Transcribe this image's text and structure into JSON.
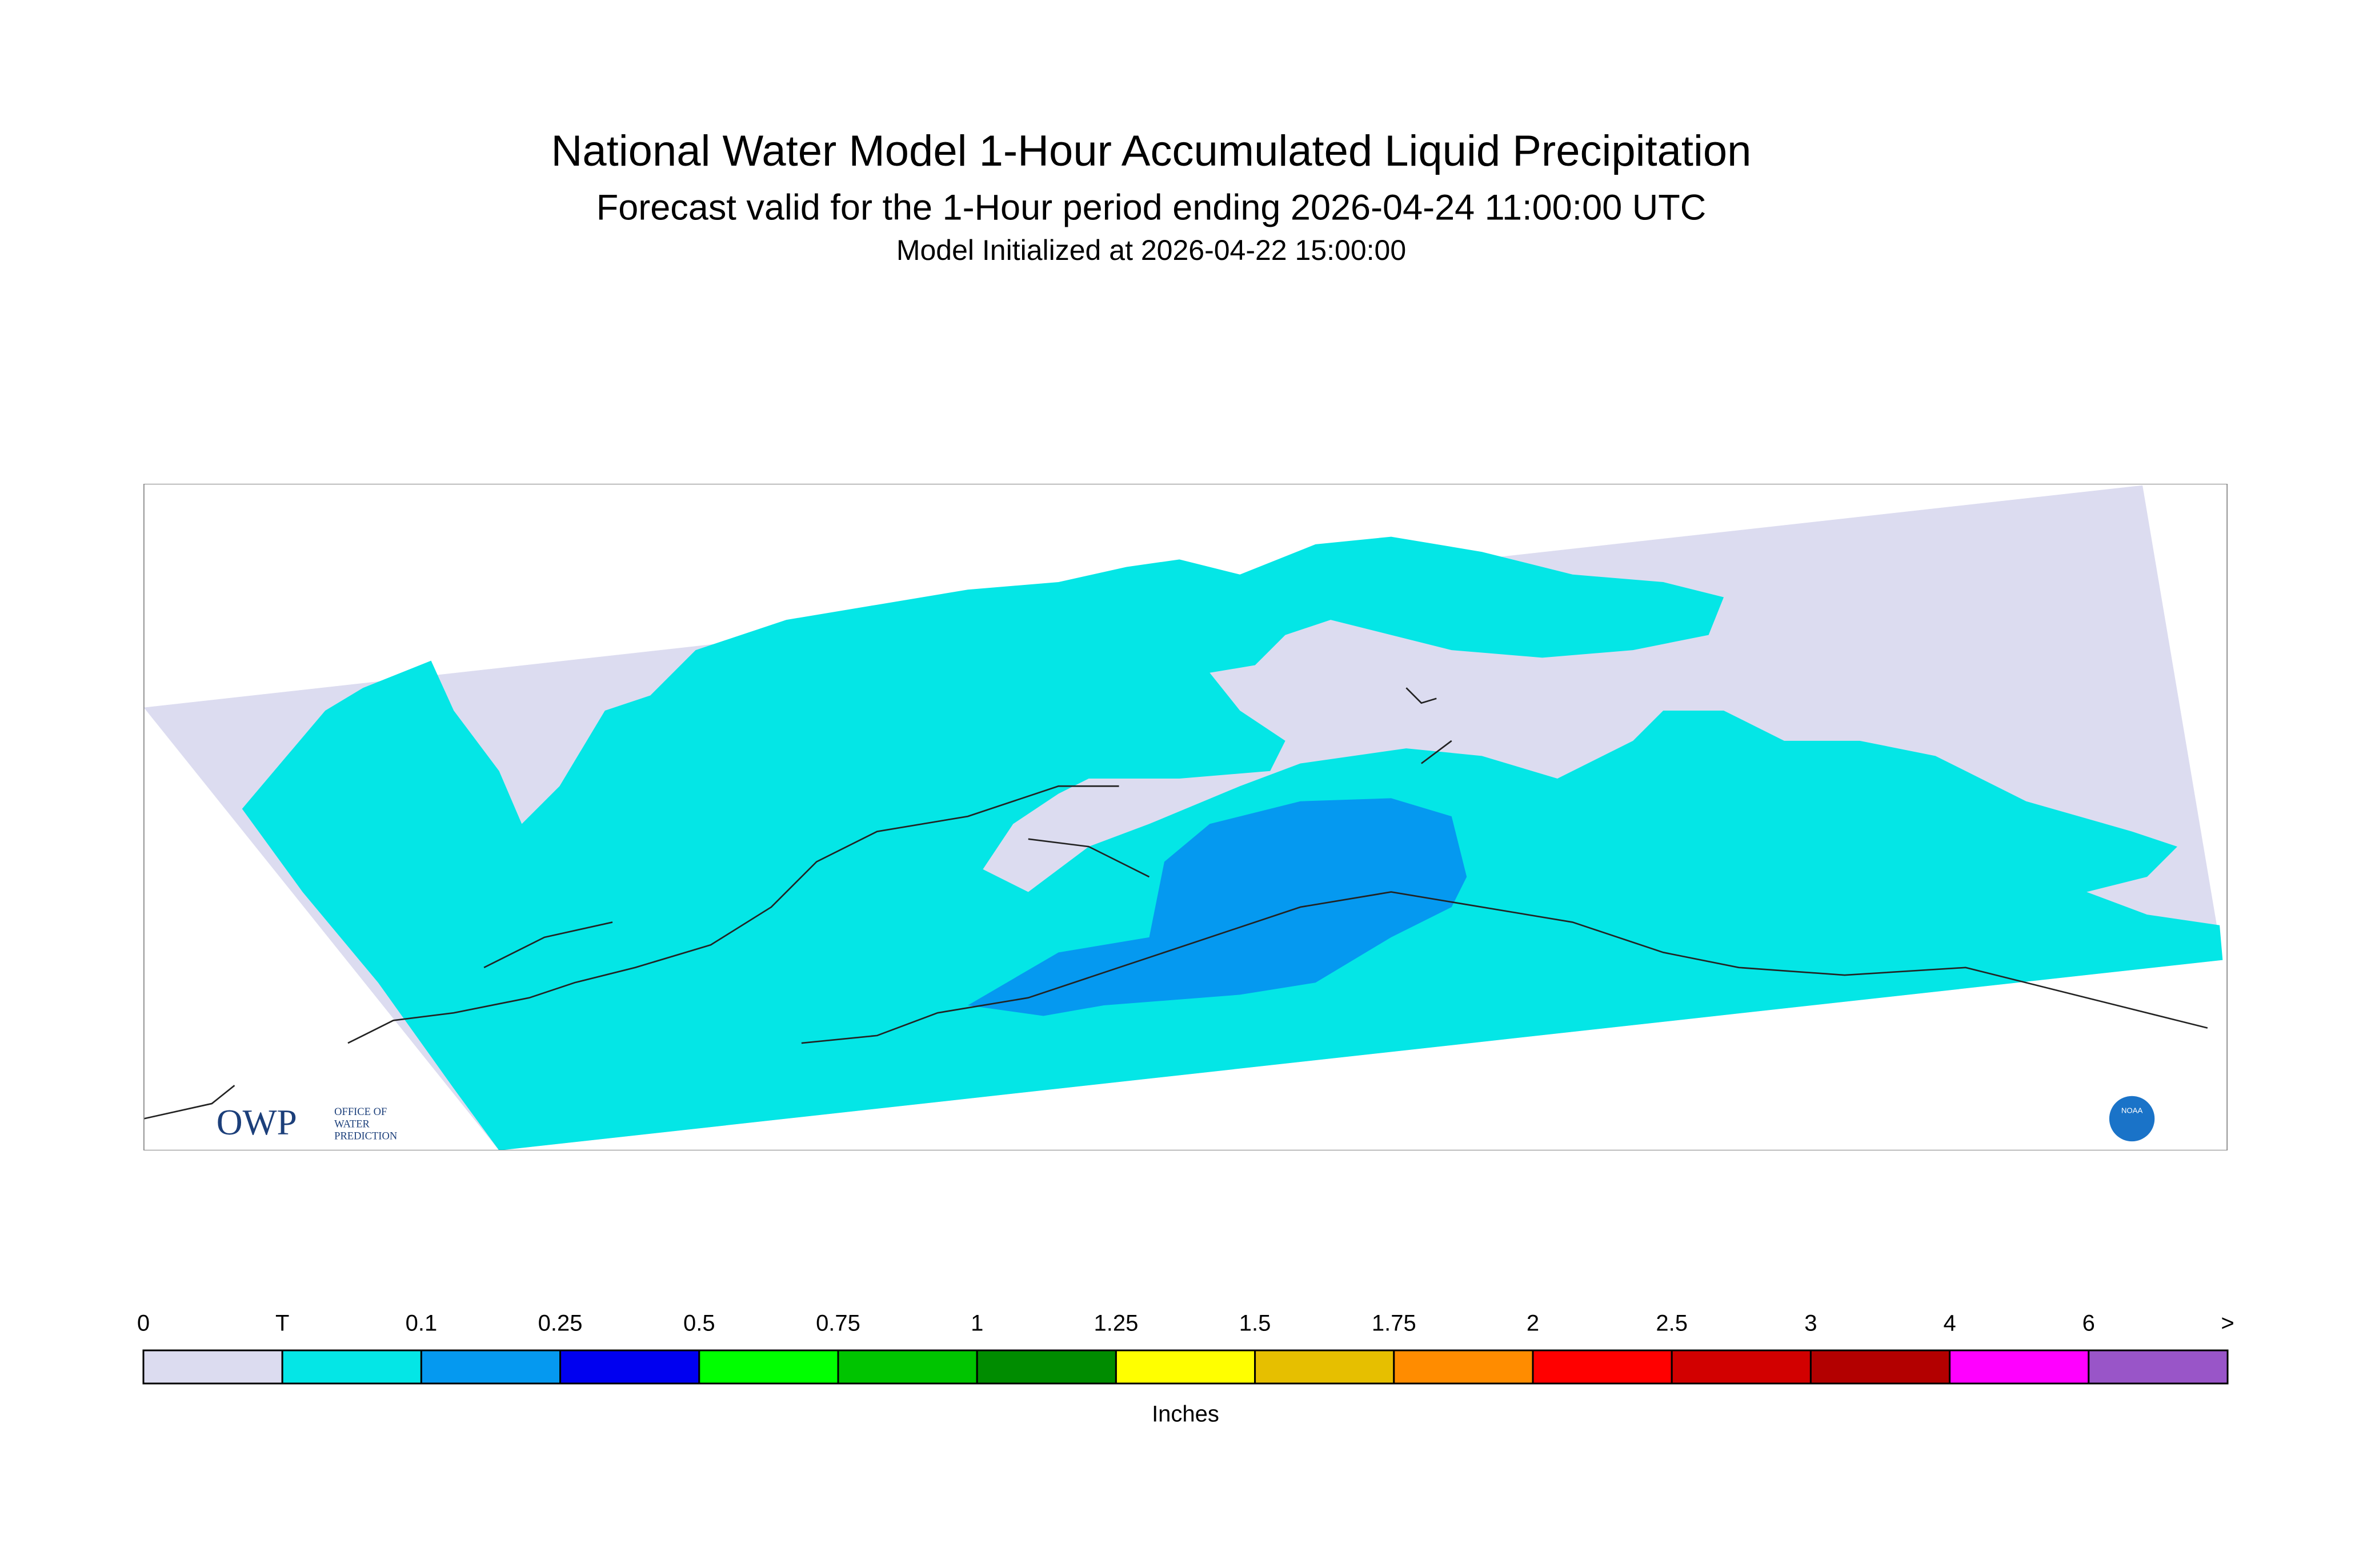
{
  "header": {
    "title": "National Water Model 1-Hour Accumulated Liquid Precipitation",
    "subtitle": "Forecast valid for the 1-Hour period ending 2026-04-24 11:00:00 UTC",
    "initialized": "Model Initialized at 2026-04-22 15:00:00"
  },
  "legend": {
    "labels": [
      "0",
      "T",
      "0.1",
      "0.25",
      "0.5",
      "0.75",
      "1",
      "1.25",
      "1.5",
      "1.75",
      "2",
      "2.5",
      "3",
      "4",
      "6",
      ">"
    ],
    "colors": [
      "#dcdcf0",
      "#04e6e6",
      "#0599f0",
      "#0000f0",
      "#00ff00",
      "#00c400",
      "#008c00",
      "#ffff00",
      "#e6bf00",
      "#ff8c00",
      "#ff0000",
      "#d20000",
      "#b30000",
      "#ff00ff",
      "#9955c8"
    ],
    "unit": "Inches"
  },
  "logos": {
    "owp": "OWP",
    "owp_lines": [
      "OFFICE OF",
      "WATER",
      "PREDICTION"
    ],
    "noaa": "NOAA"
  }
}
